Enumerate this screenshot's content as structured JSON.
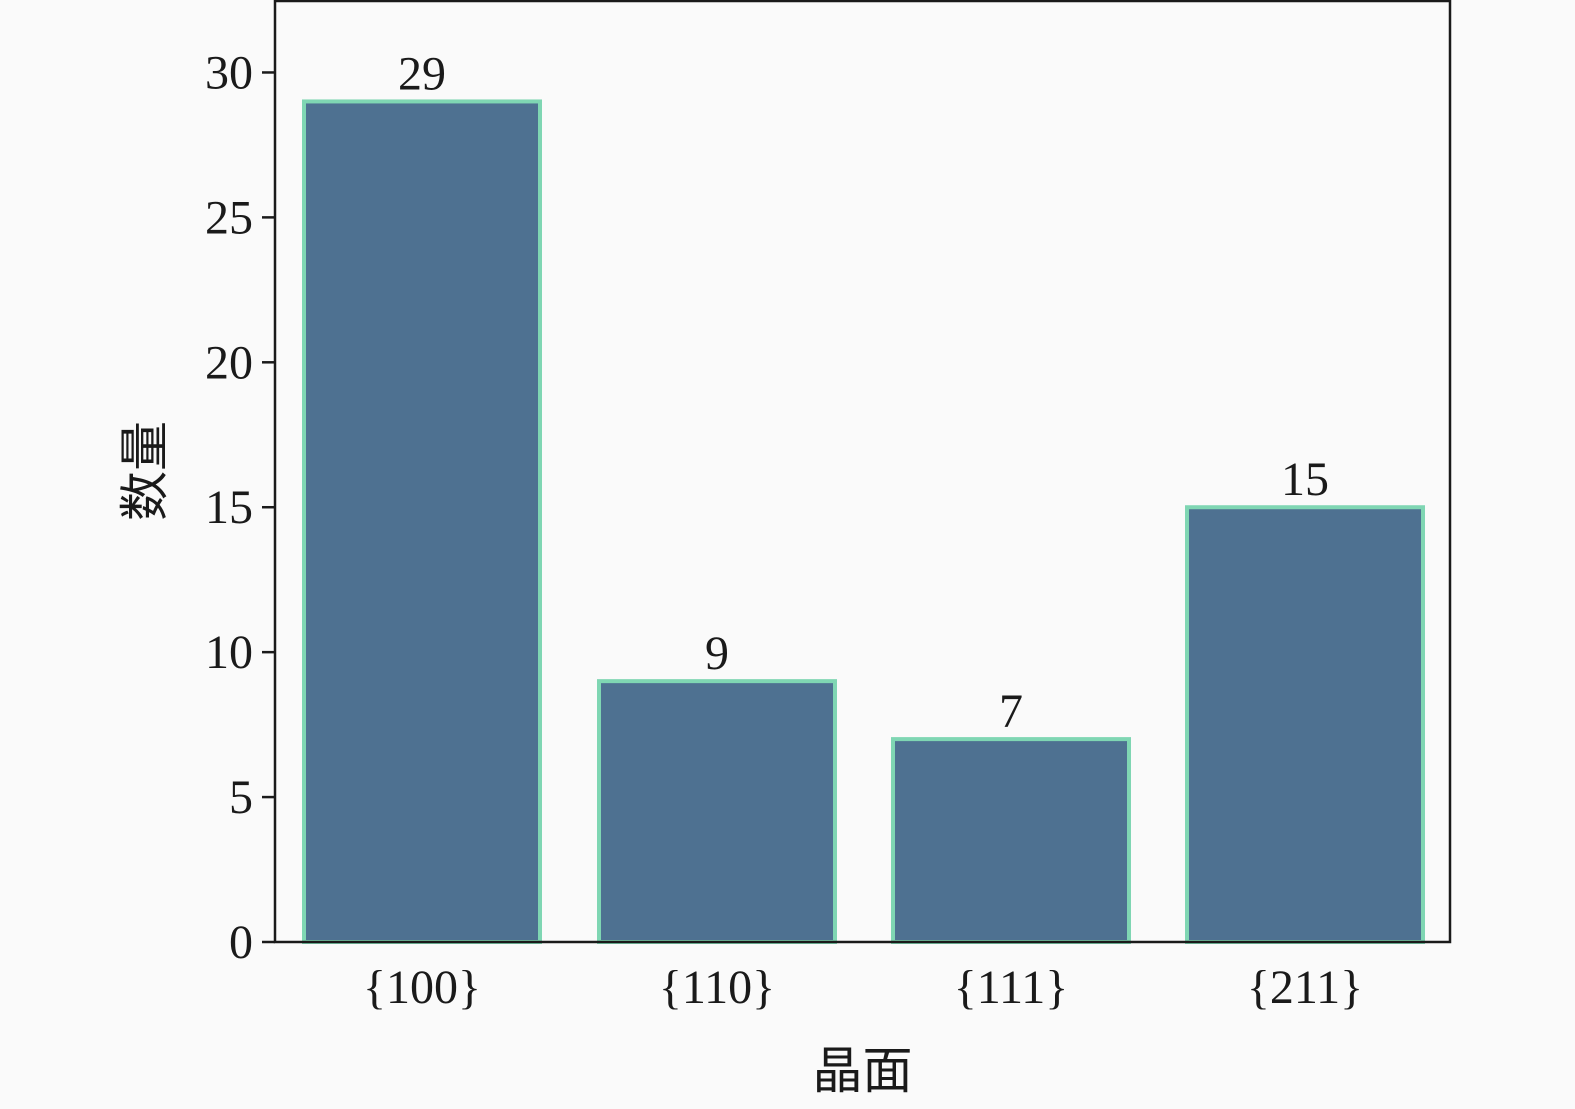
{
  "chart_data": {
    "type": "bar",
    "title": "",
    "xlabel": "晶面",
    "ylabel": "数量",
    "categories": [
      "{100}",
      "{110}",
      "{111}",
      "{211}"
    ],
    "values": [
      29,
      9,
      7,
      15
    ],
    "data_labels": [
      "29",
      "9",
      "7",
      "15"
    ],
    "ylim": [
      0,
      32.5
    ],
    "yticks": [
      0,
      5,
      10,
      15,
      20,
      25,
      30
    ],
    "ytick_labels": [
      "0",
      "5",
      "10",
      "15",
      "20",
      "25",
      "30"
    ],
    "grid": false,
    "legend": "none",
    "bar_color": "#4e7191",
    "bar_edge_color": "#7fd6b3",
    "axis_color": "#1a1a1a"
  }
}
